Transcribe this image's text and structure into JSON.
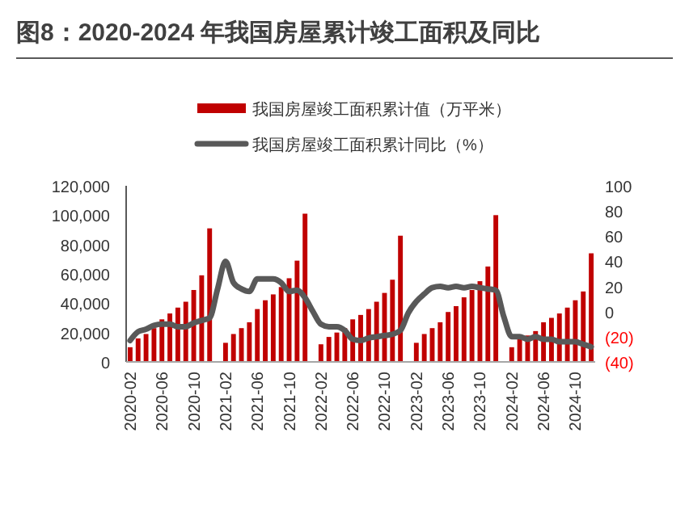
{
  "chart_data": {
    "type": "bar",
    "title": "图8：2020-2024 年我国房屋累计竣工面积及同比",
    "categories": [
      "2020-02",
      null,
      null,
      null,
      "2020-06",
      null,
      null,
      null,
      "2020-10",
      null,
      null,
      null,
      "2021-02",
      null,
      null,
      null,
      "2021-06",
      null,
      null,
      null,
      "2021-10",
      null,
      null,
      null,
      "2022-02",
      null,
      null,
      null,
      "2022-06",
      null,
      null,
      null,
      "2022-10",
      null,
      null,
      null,
      "2023-02",
      null,
      null,
      null,
      "2023-06",
      null,
      null,
      null,
      "2023-10",
      null,
      null,
      null,
      "2024-02",
      null,
      null,
      null,
      "2024-06",
      null,
      null,
      null,
      "2024-10",
      null,
      null
    ],
    "series": [
      {
        "name": "我国房屋竣工面积累计值（万平米）",
        "color": "#c00000",
        "values": [
          10000,
          16000,
          19000,
          23000,
          29000,
          33000,
          37000,
          41000,
          49000,
          59000,
          91000,
          null,
          13000,
          19000,
          23000,
          27000,
          36000,
          42000,
          46000,
          51000,
          57000,
          69000,
          101000,
          null,
          12000,
          17000,
          20000,
          23000,
          29000,
          32000,
          36000,
          41000,
          47000,
          56000,
          86000,
          null,
          13000,
          19000,
          23000,
          27000,
          34000,
          38000,
          44000,
          49000,
          55000,
          65000,
          100000,
          null,
          10000,
          16000,
          18000,
          21000,
          27000,
          30000,
          33000,
          37000,
          42000,
          48000,
          74000
        ]
      },
      {
        "name": "我国房屋竣工面积累计同比（%）",
        "type": "line",
        "axis": "y2",
        "color": "#595959",
        "values": [
          -23,
          -16,
          -14,
          -11,
          -10,
          -10,
          -12,
          -12,
          -9,
          -7,
          -5,
          18,
          40,
          23,
          18,
          16,
          26,
          26,
          26,
          23,
          16,
          17,
          11,
          0,
          -10,
          -12,
          -12,
          -15,
          -22,
          -23,
          -21,
          -20,
          -19,
          -18,
          -15,
          -1,
          8,
          14,
          19,
          20,
          19,
          20,
          19,
          20,
          19,
          18,
          17,
          -4,
          -20,
          -20,
          -22,
          -20,
          -22,
          -22,
          -24,
          -24,
          -24,
          -26,
          -28
        ]
      }
    ],
    "ylim": [
      0,
      120000
    ],
    "yticks": [
      {
        "value": 0,
        "label": "0"
      },
      {
        "value": 20000,
        "label": "20,000"
      },
      {
        "value": 40000,
        "label": "40,000"
      },
      {
        "value": 60000,
        "label": "60,000"
      },
      {
        "value": 80000,
        "label": "80,000"
      },
      {
        "value": 100000,
        "label": "100,000"
      },
      {
        "value": 120000,
        "label": "120,000"
      }
    ],
    "y2lim": [
      -40,
      100
    ],
    "y2ticks": [
      {
        "value": -40,
        "label": "(40)"
      },
      {
        "value": -20,
        "label": "(20)"
      },
      0,
      20,
      40,
      60,
      80,
      100
    ],
    "legend": "top"
  }
}
